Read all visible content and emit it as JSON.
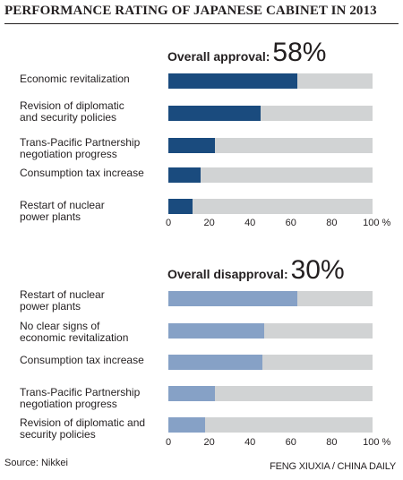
{
  "title": "PERFORMANCE RATING OF JAPANESE CABINET IN 2013",
  "source": "Source: Nikkei",
  "credit": "FENG XIUXIA / CHINA DAILY",
  "colors": {
    "approval_bar": "#1a4b7e",
    "disapproval_bar": "#86a1c6",
    "track": "#d1d3d4"
  },
  "chart_data": [
    {
      "type": "bar",
      "orientation": "horizontal",
      "headline_label": "Overall approval:",
      "headline_value": "58%",
      "categories": [
        "Economic revitalization",
        "Revision of diplomatic\nand security policies",
        "Trans-Pacific Partnership\nnegotiation progress",
        "Consumption tax increase",
        "Restart of nuclear\npower plants"
      ],
      "values": [
        63,
        45,
        23,
        16,
        12
      ],
      "xlim": [
        0,
        100
      ],
      "ticks": [
        "0",
        "20",
        "40",
        "60",
        "80",
        "100 %"
      ]
    },
    {
      "type": "bar",
      "orientation": "horizontal",
      "headline_label": "Overall disapproval:",
      "headline_value": "30%",
      "categories": [
        "Restart of nuclear\npower plants",
        "No clear signs of\neconomic revitalization",
        "Consumption tax increase",
        "Trans-Pacific Partnership\nnegotiation progress",
        "Revision of diplomatic and\nsecurity policies"
      ],
      "values": [
        63,
        47,
        46,
        23,
        18
      ],
      "xlim": [
        0,
        100
      ],
      "ticks": [
        "0",
        "20",
        "40",
        "60",
        "80",
        "100 %"
      ]
    }
  ]
}
